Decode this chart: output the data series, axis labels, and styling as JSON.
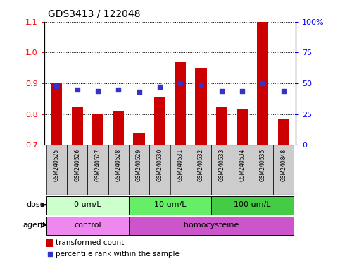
{
  "title": "GDS3413 / 122048",
  "samples": [
    "GSM240525",
    "GSM240526",
    "GSM240527",
    "GSM240528",
    "GSM240529",
    "GSM240530",
    "GSM240531",
    "GSM240532",
    "GSM240533",
    "GSM240534",
    "GSM240535",
    "GSM240848"
  ],
  "transformed_count": [
    0.9,
    0.825,
    0.8,
    0.81,
    0.737,
    0.855,
    0.97,
    0.95,
    0.825,
    0.815,
    1.1,
    0.785
  ],
  "percentile_rank": [
    48,
    45,
    44,
    45,
    43,
    47,
    50,
    49,
    44,
    44,
    50,
    44
  ],
  "ylim_left": [
    0.7,
    1.1
  ],
  "ylim_right": [
    0,
    100
  ],
  "yticks_left": [
    0.7,
    0.8,
    0.9,
    1.0,
    1.1
  ],
  "yticks_right": [
    0,
    25,
    50,
    75,
    100
  ],
  "ytick_labels_right": [
    "0",
    "25",
    "50",
    "75",
    "100%"
  ],
  "bar_color": "#cc0000",
  "dot_color": "#3333cc",
  "dose_groups": [
    {
      "label": "0 um/L",
      "start": 0,
      "end": 4,
      "color": "#ccffcc"
    },
    {
      "label": "10 um/L",
      "start": 4,
      "end": 8,
      "color": "#66ee66"
    },
    {
      "label": "100 um/L",
      "start": 8,
      "end": 12,
      "color": "#44cc44"
    }
  ],
  "agent_groups": [
    {
      "label": "control",
      "start": 0,
      "end": 4,
      "color": "#ee88ee"
    },
    {
      "label": "homocysteine",
      "start": 4,
      "end": 12,
      "color": "#cc55cc"
    }
  ],
  "dose_label": "dose",
  "agent_label": "agent",
  "legend_bar_label": "transformed count",
  "legend_dot_label": "percentile rank within the sample",
  "grid_color": "black",
  "background_color": "white",
  "sample_bg_color": "#cccccc"
}
